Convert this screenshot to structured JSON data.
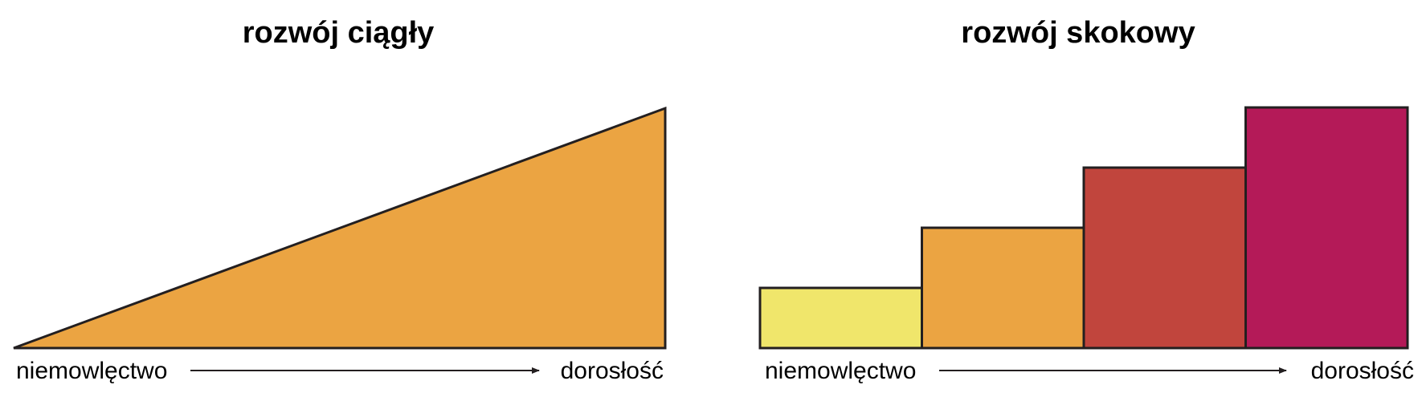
{
  "panels": {
    "continuous": {
      "title": "rozwój ciągły",
      "start_label": "niemowlęctwo",
      "end_label": "dorosłość",
      "fill_color": "#EBA442"
    },
    "stepwise": {
      "title": "rozwój skokowy",
      "start_label": "niemowlęctwo",
      "end_label": "dorosłość",
      "steps": [
        {
          "level": 1,
          "color": "#F0E66B"
        },
        {
          "level": 2,
          "color": "#EBA442"
        },
        {
          "level": 3,
          "color": "#C1453D"
        },
        {
          "level": 4,
          "color": "#B41A58"
        }
      ]
    }
  },
  "colors": {
    "outline": "#231F20",
    "arrow": "#231F20"
  }
}
